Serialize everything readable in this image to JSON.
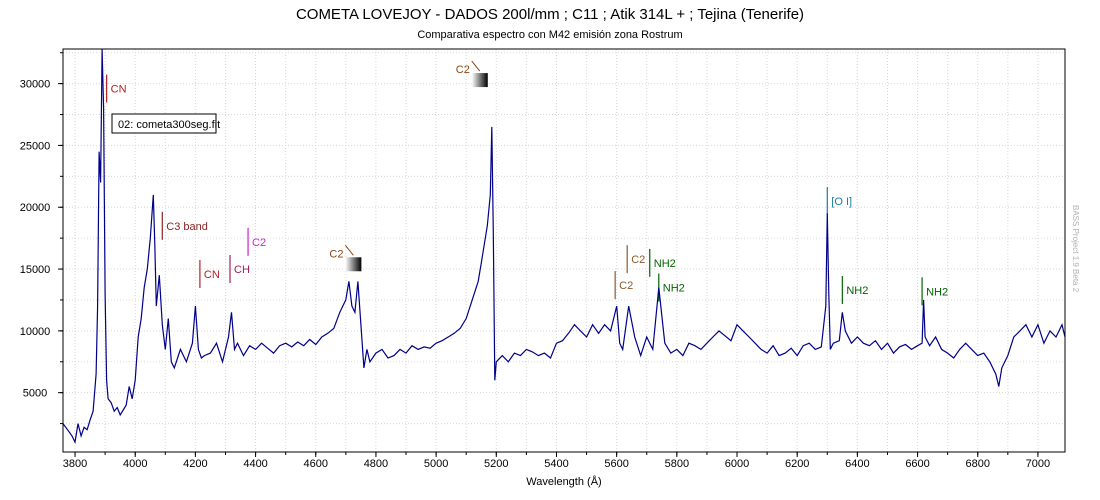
{
  "chart_data": {
    "type": "line",
    "title": "COMETA LOVEJOY - DADOS 200l/mm ; C11 ; Atik 314L + ; Tejina (Tenerife)",
    "subtitle": "Comparativa espectro con M42 emisión zona Rostrum",
    "xlabel": "Wavelength (Å)",
    "ylabel": "",
    "xlim": [
      3760,
      7090
    ],
    "ylim": [
      200,
      32800
    ],
    "grid": true,
    "xticks": [
      3800,
      4000,
      4200,
      4400,
      4600,
      4800,
      5000,
      5200,
      5400,
      5600,
      5800,
      6000,
      6200,
      6400,
      6600,
      6800,
      7000
    ],
    "yticks": [
      5000,
      10000,
      15000,
      20000,
      25000,
      30000
    ],
    "legend": {
      "label": "02: cometa300seg.fit",
      "placement": "top-left"
    },
    "watermark": "BASS Project 1.9 Beta 2",
    "series": [
      {
        "name": "02: cometa300seg.fit",
        "color": "#00008b",
        "x": [
          3760,
          3775,
          3790,
          3800,
          3810,
          3820,
          3830,
          3840,
          3850,
          3860,
          3870,
          3875,
          3880,
          3885,
          3890,
          3895,
          3900,
          3905,
          3910,
          3920,
          3930,
          3940,
          3950,
          3960,
          3970,
          3980,
          3990,
          4000,
          4010,
          4020,
          4030,
          4040,
          4050,
          4060,
          4065,
          4070,
          4080,
          4090,
          4100,
          4110,
          4120,
          4130,
          4150,
          4170,
          4190,
          4200,
          4210,
          4220,
          4230,
          4250,
          4270,
          4290,
          4300,
          4310,
          4320,
          4330,
          4340,
          4360,
          4380,
          4400,
          4420,
          4440,
          4460,
          4480,
          4500,
          4520,
          4540,
          4560,
          4580,
          4600,
          4620,
          4640,
          4660,
          4680,
          4700,
          4710,
          4720,
          4730,
          4740,
          4750,
          4760,
          4770,
          4780,
          4800,
          4820,
          4840,
          4860,
          4880,
          4900,
          4920,
          4940,
          4960,
          4980,
          5000,
          5020,
          5040,
          5060,
          5080,
          5100,
          5120,
          5140,
          5150,
          5160,
          5170,
          5180,
          5185,
          5190,
          5195,
          5200,
          5220,
          5240,
          5260,
          5280,
          5300,
          5320,
          5340,
          5360,
          5380,
          5400,
          5420,
          5440,
          5460,
          5480,
          5500,
          5520,
          5540,
          5560,
          5580,
          5600,
          5610,
          5620,
          5640,
          5660,
          5680,
          5700,
          5720,
          5740,
          5760,
          5780,
          5800,
          5820,
          5840,
          5860,
          5880,
          5900,
          5920,
          5940,
          5960,
          5980,
          6000,
          6020,
          6040,
          6060,
          6080,
          6100,
          6120,
          6140,
          6160,
          6180,
          6200,
          6220,
          6240,
          6260,
          6280,
          6295,
          6300,
          6305,
          6310,
          6320,
          6340,
          6350,
          6360,
          6380,
          6400,
          6420,
          6440,
          6460,
          6480,
          6500,
          6520,
          6540,
          6560,
          6580,
          6600,
          6615,
          6620,
          6625,
          6640,
          6660,
          6680,
          6700,
          6720,
          6740,
          6760,
          6780,
          6800,
          6820,
          6840,
          6860,
          6870,
          6880,
          6900,
          6920,
          6940,
          6960,
          6980,
          7000,
          7020,
          7040,
          7060,
          7080,
          7090
        ],
        "values": [
          2500,
          2000,
          1500,
          1000,
          2500,
          1500,
          2200,
          2000,
          2800,
          3500,
          6500,
          12000,
          24500,
          22000,
          33000,
          28000,
          13000,
          6000,
          4500,
          4200,
          3500,
          3800,
          3200,
          3600,
          4000,
          5500,
          4500,
          6000,
          9500,
          11000,
          13500,
          15000,
          17500,
          21000,
          17000,
          12000,
          14500,
          10500,
          8500,
          11000,
          7500,
          7000,
          8500,
          7500,
          9000,
          12000,
          8500,
          7800,
          8000,
          8200,
          9000,
          7500,
          8500,
          9500,
          11500,
          8500,
          9000,
          8000,
          8800,
          8500,
          9000,
          8600,
          8200,
          8800,
          9000,
          8700,
          9100,
          8800,
          9300,
          8900,
          9500,
          9800,
          10200,
          11500,
          12500,
          14000,
          12000,
          11500,
          14000,
          10500,
          7000,
          8500,
          7500,
          8200,
          8500,
          7800,
          8000,
          8500,
          8200,
          8800,
          8500,
          8700,
          8600,
          9000,
          9200,
          9500,
          9800,
          10200,
          11000,
          12500,
          14000,
          15500,
          17000,
          18500,
          21000,
          26500,
          18000,
          6000,
          7500,
          8000,
          7500,
          8200,
          8000,
          8500,
          8300,
          8000,
          8200,
          7800,
          9000,
          9200,
          9800,
          10500,
          10000,
          9500,
          10500,
          9800,
          10500,
          10000,
          12000,
          9000,
          8500,
          12000,
          9500,
          8000,
          9500,
          8500,
          13500,
          9000,
          8200,
          8500,
          8000,
          9000,
          8800,
          8500,
          9000,
          9500,
          10000,
          9600,
          9200,
          10500,
          10000,
          9500,
          9000,
          8500,
          8200,
          8800,
          8000,
          8200,
          8600,
          8000,
          8800,
          9000,
          8500,
          8700,
          12000,
          19500,
          13000,
          8500,
          9000,
          9200,
          11500,
          10000,
          9000,
          9500,
          9000,
          8800,
          9200,
          8500,
          9000,
          8200,
          8700,
          8900,
          8500,
          8800,
          9000,
          12500,
          9500,
          8800,
          9500,
          8500,
          8200,
          7800,
          8500,
          9000,
          8500,
          8000,
          8200,
          7500,
          6500,
          5500,
          7000,
          8000,
          9500,
          10000,
          10500,
          9500,
          10500,
          9000,
          10000,
          9500,
          10500,
          9500
        ]
      }
    ],
    "annotations": [
      {
        "label": "CN",
        "wavelength": 3905,
        "y": 29600,
        "color": "#b22222",
        "style": "tick"
      },
      {
        "label": "C3 band",
        "wavelength": 4090,
        "y": 18500,
        "color": "#8b2323",
        "style": "tick"
      },
      {
        "label": "CN",
        "wavelength": 4215,
        "y": 14600,
        "color": "#b22222",
        "style": "tick"
      },
      {
        "label": "CH",
        "wavelength": 4315,
        "y": 15000,
        "color": "#a0225a",
        "style": "tick"
      },
      {
        "label": "C2",
        "wavelength": 4375,
        "y": 17200,
        "color": "#cc22cc",
        "style": "tick"
      },
      {
        "label": "C2",
        "wavelength": 4745,
        "y": 16600,
        "color": "#8b4513",
        "style": "bandhead"
      },
      {
        "label": "C2",
        "wavelength": 5165,
        "y": 31500,
        "color": "#8b4513",
        "style": "bandhead"
      },
      {
        "label": "C2",
        "wavelength": 5595,
        "y": 13700,
        "color": "#8b5a2b",
        "style": "tick"
      },
      {
        "label": "C2",
        "wavelength": 5635,
        "y": 15800,
        "color": "#8b5a2b",
        "style": "tick"
      },
      {
        "label": "NH2",
        "wavelength": 5710,
        "y": 15500,
        "color": "#006400",
        "style": "tick"
      },
      {
        "label": "NH2",
        "wavelength": 5740,
        "y": 13500,
        "color": "#006400",
        "style": "tick"
      },
      {
        "label": "[O I]",
        "wavelength": 6300,
        "y": 20500,
        "color": "#1a7fa0",
        "style": "tick"
      },
      {
        "label": "NH2",
        "wavelength": 6350,
        "y": 13300,
        "color": "#006400",
        "style": "tick"
      },
      {
        "label": "NH2",
        "wavelength": 6615,
        "y": 13200,
        "color": "#006400",
        "style": "tick"
      }
    ]
  }
}
